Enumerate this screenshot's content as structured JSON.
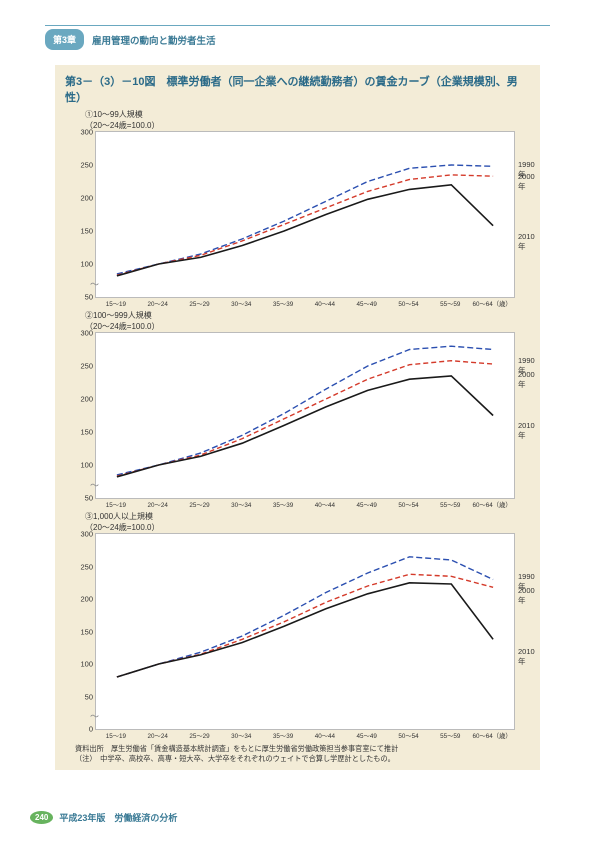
{
  "header": {
    "chapter_badge": "第3章",
    "chapter_title": "雇用管理の動向と勤労者生活"
  },
  "figure": {
    "title": "第3－（3）－10図　標準労働者（同一企業への継続勤務者）の賃金カーブ（企業規模別、男性）",
    "background": "#f3ecd7",
    "panels": [
      {
        "label": "①10～99人規模",
        "sublabel": "（20～24歳=100.0）",
        "height": 165,
        "ylim": [
          50,
          300
        ],
        "ytick_step": 50,
        "yticks": [
          50,
          100,
          150,
          200,
          250,
          300
        ],
        "xlabels": [
          "15～19",
          "20～24",
          "25～29",
          "30～34",
          "35～39",
          "40～44",
          "45～49",
          "50～54",
          "55～59",
          "60～64（歳）"
        ],
        "series": [
          {
            "name": "1990年",
            "color": "#2b4fb0",
            "dash": "6 3",
            "width": 1.4,
            "label_y": 28,
            "values": [
              85,
              100,
              115,
              138,
              165,
              195,
              225,
              245,
              250,
              248
            ]
          },
          {
            "name": "2000年",
            "color": "#d43a2a",
            "dash": "5 3",
            "width": 1.4,
            "label_y": 40,
            "values": [
              83,
              100,
              113,
              135,
              160,
              185,
              210,
              228,
              235,
              233
            ]
          },
          {
            "name": "2010年",
            "color": "#1a1a1a",
            "dash": "",
            "width": 1.6,
            "label_y": 100,
            "values": [
              82,
              100,
              110,
              128,
              150,
              175,
              198,
              213,
              220,
              158
            ]
          }
        ]
      },
      {
        "label": "②100～999人規模",
        "sublabel": "（20～24歳=100.0）",
        "height": 165,
        "ylim": [
          50,
          300
        ],
        "ytick_step": 50,
        "yticks": [
          50,
          100,
          150,
          200,
          250,
          300
        ],
        "xlabels": [
          "15～19",
          "20～24",
          "25～29",
          "30～34",
          "35～39",
          "40～44",
          "45～49",
          "50～54",
          "55～59",
          "60～64（歳）"
        ],
        "series": [
          {
            "name": "1990年",
            "color": "#2b4fb0",
            "dash": "6 3",
            "width": 1.4,
            "label_y": 23,
            "values": [
              85,
              100,
              118,
              145,
              178,
              215,
              250,
              275,
              280,
              275
            ]
          },
          {
            "name": "2000年",
            "color": "#d43a2a",
            "dash": "5 3",
            "width": 1.4,
            "label_y": 37,
            "values": [
              83,
              100,
              115,
              140,
              170,
              200,
              230,
              252,
              258,
              253
            ]
          },
          {
            "name": "2010年",
            "color": "#1a1a1a",
            "dash": "",
            "width": 1.6,
            "label_y": 88,
            "values": [
              82,
              100,
              113,
              133,
              160,
              188,
              213,
              230,
              235,
              175
            ]
          }
        ]
      },
      {
        "label": "③1,000人以上規模",
        "sublabel": "（20～24歳=100.0）",
        "height": 195,
        "ylim": [
          0,
          300
        ],
        "ytick_step": 50,
        "yticks": [
          0,
          50,
          100,
          150,
          200,
          250,
          300
        ],
        "xlabels": [
          "15～19",
          "20～24",
          "25～29",
          "30～34",
          "35～39",
          "40～44",
          "45～49",
          "50～54",
          "55～59",
          "60～64（歳）"
        ],
        "series": [
          {
            "name": "1990年",
            "color": "#2b4fb0",
            "dash": "6 3",
            "width": 1.4,
            "label_y": 38,
            "values": [
              80,
              100,
              118,
              143,
              175,
              210,
              240,
              265,
              260,
              230
            ]
          },
          {
            "name": "2000年",
            "color": "#d43a2a",
            "dash": "5 3",
            "width": 1.4,
            "label_y": 52,
            "values": [
              80,
              100,
              115,
              138,
              165,
              195,
              220,
              238,
              235,
              218
            ]
          },
          {
            "name": "2010年",
            "color": "#1a1a1a",
            "dash": "",
            "width": 1.6,
            "label_y": 113,
            "values": [
              80,
              100,
              114,
              133,
              158,
              185,
              208,
              225,
              223,
              138
            ]
          }
        ]
      }
    ],
    "notes_line1": "資料出所　厚生労働省「賃金構造基本統計調査」をもとに厚生労働省労働政策担当参事官室にて推計",
    "notes_line2": "（注）　中学卒、高校卒、高専・短大卒、大学卒をそれぞれのウェイトで合算し学歴計としたもの。"
  },
  "footer": {
    "page": "240",
    "text": "平成23年版　労働経済の分析"
  }
}
